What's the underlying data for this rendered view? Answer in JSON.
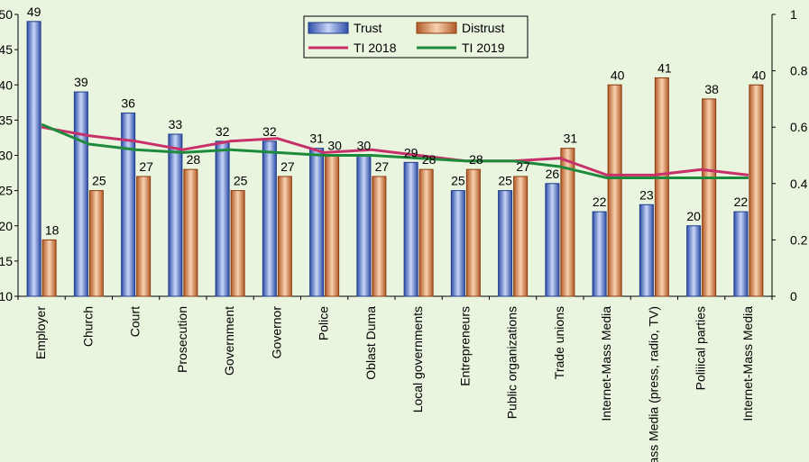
{
  "chart_data": {
    "type": "bar",
    "categories": [
      "Employer",
      "Church",
      "Court",
      "Prosecution",
      "Government",
      "Governor",
      "Police",
      "Oblast Duma",
      "Local governments",
      "Entrepreneurs",
      "Public organizations",
      "Trade unions",
      "Internet-Mass Media",
      "Mass Media (press, radio, TV)",
      "Poliiical parties",
      "Internet-Mass Media"
    ],
    "series": [
      {
        "name": "Trust",
        "kind": "bar",
        "axis": "left",
        "color": "#4a6fc8",
        "values": [
          49,
          39,
          36,
          33,
          32,
          32,
          31,
          30,
          29,
          25,
          25,
          26,
          22,
          23,
          20,
          22
        ]
      },
      {
        "name": "Distrust",
        "kind": "bar",
        "axis": "left",
        "color": "#d9804a",
        "values": [
          18,
          25,
          27,
          28,
          25,
          27,
          30,
          27,
          28,
          28,
          27,
          31,
          40,
          41,
          38,
          40
        ]
      },
      {
        "name": "TI 2018",
        "kind": "line",
        "axis": "right",
        "color": "#c8306a",
        "values": [
          0.6,
          0.57,
          0.55,
          0.52,
          0.55,
          0.56,
          0.51,
          0.52,
          0.5,
          0.48,
          0.48,
          0.49,
          0.43,
          0.43,
          0.45,
          0.43
        ]
      },
      {
        "name": "TI 2019",
        "kind": "line",
        "axis": "right",
        "color": "#1e8a3c",
        "values": [
          0.61,
          0.54,
          0.52,
          0.51,
          0.52,
          0.51,
          0.5,
          0.5,
          0.49,
          0.48,
          0.48,
          0.46,
          0.42,
          0.42,
          0.42,
          0.42
        ]
      }
    ],
    "trust_labels": [
      "49",
      "39",
      "36",
      "33",
      "32",
      "32",
      "31",
      "30",
      "29",
      "25",
      "25",
      "26",
      "22",
      "23",
      "20",
      "22"
    ],
    "distrust_labels": [
      "18",
      "25",
      "27",
      "28",
      "25",
      "27",
      "30",
      "27",
      "28",
      "28",
      "27",
      "31",
      "40",
      "41",
      "38",
      "40"
    ],
    "y_left": {
      "min": 10,
      "max": 50,
      "ticks": [
        "10",
        "15",
        "20",
        "25",
        "30",
        "35",
        "40",
        "45",
        "50"
      ]
    },
    "y_right": {
      "min": 0,
      "max": 1,
      "ticks": [
        "0",
        "0.2",
        "0.4",
        "0.6",
        "0.8",
        "1"
      ]
    },
    "legend": [
      "Trust",
      "Distrust",
      "TI 2018",
      "TI 2019"
    ],
    "legend_position": "top-center",
    "grid": false,
    "title": "",
    "xlabel": "",
    "ylabel": ""
  }
}
